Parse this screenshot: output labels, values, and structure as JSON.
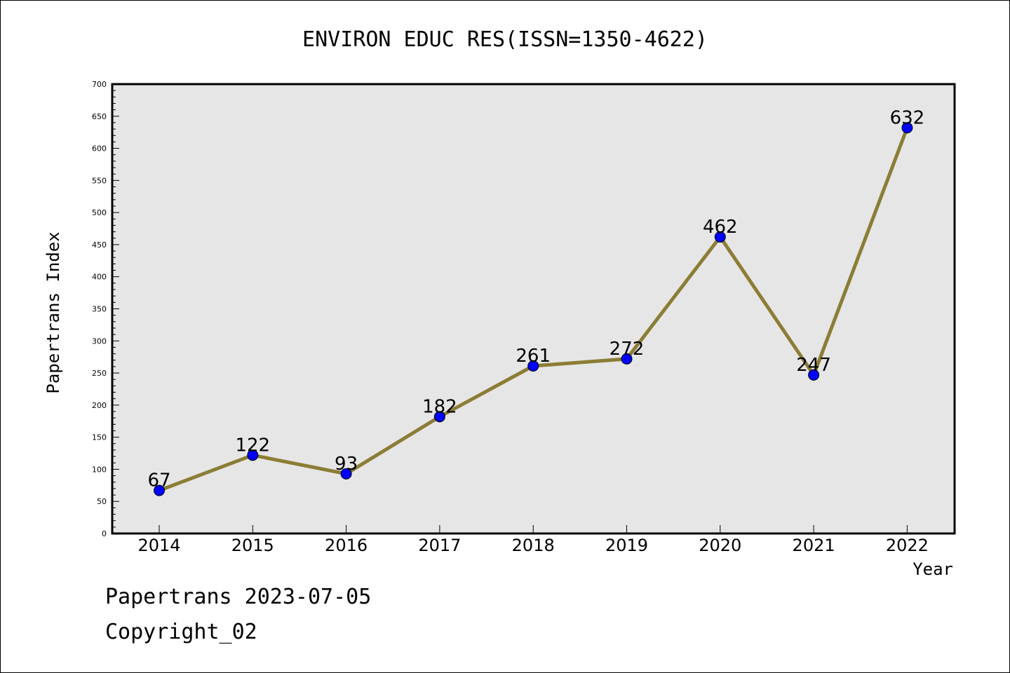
{
  "chart_data": {
    "type": "line",
    "title": "ENVIRON EDUC RES(ISSN=1350-4622)",
    "xlabel": "Year",
    "ylabel": "Papertrans Index",
    "categories": [
      "2014",
      "2015",
      "2016",
      "2017",
      "2018",
      "2019",
      "2020",
      "2021",
      "2022"
    ],
    "series": [
      {
        "values": [
          67,
          122,
          93,
          182,
          261,
          272,
          462,
          247,
          632
        ]
      }
    ],
    "data_labels": [
      "67",
      "122",
      "93",
      "182",
      "261",
      "272",
      "462",
      "247",
      "632"
    ],
    "ylim": [
      0,
      700
    ],
    "yticks": [
      "0",
      "50",
      "100",
      "150",
      "200",
      "250",
      "300",
      "350",
      "400",
      "450",
      "500",
      "550",
      "600",
      "650",
      "700"
    ],
    "grid": false,
    "colors": {
      "line": "#8b7d35",
      "marker": "#0000ff",
      "plot_background": "#e6e6e6"
    }
  },
  "footer": {
    "date_line": "Papertrans 2023-07-05",
    "copyright": "Copyright_02"
  }
}
